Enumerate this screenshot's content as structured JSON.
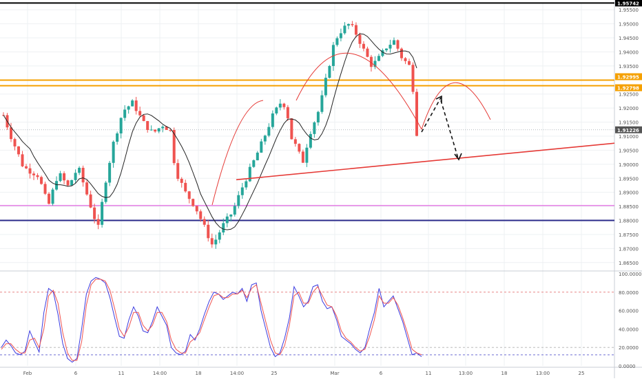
{
  "chart_data": [
    {
      "type": "candlestick",
      "title": "",
      "x_tick_labels": [
        "Feb",
        "6",
        "11",
        "14:00",
        "18",
        "14:00",
        "25",
        "Mar",
        "6",
        "11",
        "13:00",
        "18",
        "13:00",
        "25"
      ],
      "y_tick_labels": [
        "1.95500",
        "1.95000",
        "1.94500",
        "1.94000",
        "1.93500",
        "1.92500",
        "1.92000",
        "1.91500",
        "1.91000",
        "1.90500",
        "1.90000",
        "1.89500",
        "1.89000",
        "1.88500",
        "1.88000",
        "1.87500",
        "1.87000",
        "1.86500"
      ],
      "ylim": [
        1.8625,
        1.9575
      ],
      "grid": true,
      "price_markers": [
        {
          "label": "1.95742",
          "value": 1.95742,
          "color": "#000000"
        },
        {
          "label": "1.92995",
          "value": 1.92995,
          "color": "#f5a000"
        },
        {
          "label": "1.92798",
          "value": 1.92798,
          "color": "#f5a000"
        },
        {
          "label": "1.91226",
          "value": 1.91226,
          "color": "#555555"
        }
      ],
      "horizontal_lines": [
        {
          "value": 1.95742,
          "color": "#000000"
        },
        {
          "value": 1.92995,
          "color": "#f5a000"
        },
        {
          "value": 1.92798,
          "color": "#f5a000"
        },
        {
          "value": 1.8853,
          "color": "#e066e0"
        },
        {
          "value": 1.88,
          "color": "#2a2a8a"
        }
      ],
      "candle_count": 152,
      "up_color": "#26a69a",
      "down_color": "#ef5350",
      "moving_average_color": "#222222",
      "trendline": {
        "from": [
          61,
          1.8945
        ],
        "to": [
          157,
          1.9075
        ],
        "color": "#e53935"
      },
      "arcs_color": "#e53935",
      "projection_color": "#111111"
    },
    {
      "type": "line",
      "title": "",
      "y_tick_labels": [
        "100.0000",
        "80.0000",
        "60.0000",
        "40.0000",
        "20.0000",
        "0.0000"
      ],
      "ylim": [
        0,
        100
      ],
      "reference_lines": [
        80,
        20,
        12
      ],
      "series": [
        {
          "color": "#3a3ae0",
          "values": [
            20,
            28,
            22,
            14,
            12,
            16,
            38,
            26,
            15,
            58,
            84,
            80,
            56,
            24,
            8,
            4,
            8,
            40,
            78,
            92,
            96,
            94,
            90,
            74,
            52,
            32,
            30,
            50,
            64,
            54,
            38,
            36,
            48,
            64,
            54,
            44,
            20,
            14,
            12,
            16,
            34,
            28,
            40,
            56,
            70,
            80,
            78,
            72,
            76,
            80,
            78,
            84,
            70,
            88,
            90,
            60,
            40,
            20,
            10,
            14,
            30,
            52,
            86,
            76,
            64,
            70,
            86,
            88,
            70,
            62,
            64,
            50,
            32,
            28,
            24,
            18,
            14,
            20,
            40,
            58,
            84,
            64,
            70,
            76,
            62,
            48,
            30,
            12,
            14,
            10
          ]
        },
        {
          "color": "#ef5350",
          "values": [
            18,
            24,
            24,
            18,
            14,
            14,
            28,
            30,
            20,
            40,
            76,
            82,
            68,
            36,
            14,
            6,
            6,
            26,
            66,
            88,
            94,
            94,
            92,
            82,
            62,
            40,
            32,
            42,
            58,
            58,
            44,
            38,
            44,
            58,
            58,
            48,
            28,
            18,
            14,
            14,
            26,
            30,
            36,
            50,
            64,
            76,
            78,
            74,
            74,
            78,
            78,
            82,
            74,
            84,
            88,
            68,
            48,
            28,
            14,
            12,
            22,
            44,
            76,
            80,
            68,
            68,
            80,
            86,
            76,
            66,
            64,
            54,
            38,
            30,
            26,
            20,
            16,
            18,
            32,
            50,
            76,
            68,
            68,
            74,
            66,
            52,
            36,
            18,
            14,
            12
          ]
        }
      ]
    }
  ]
}
